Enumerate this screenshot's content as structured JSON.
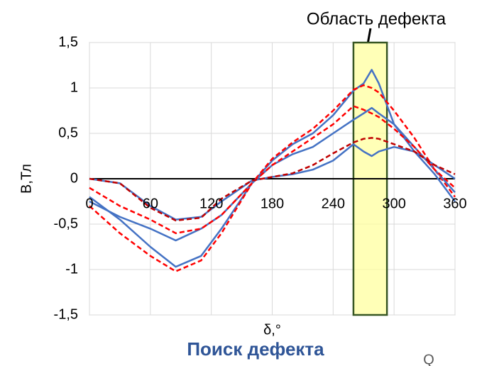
{
  "chart_data": {
    "type": "line",
    "title": "Поиск дефекта",
    "annotation": "Область дефекта",
    "corner_text": "Q",
    "xlabel": "δ,°",
    "ylabel": "В,Тл",
    "x": [
      0,
      30,
      60,
      85,
      110,
      130,
      160,
      180,
      200,
      220,
      240,
      260,
      270,
      278,
      285,
      300,
      320,
      340,
      360
    ],
    "series": [
      {
        "color": "#4472c4",
        "dash": false,
        "values": [
          -0.2,
          -0.45,
          -0.75,
          -0.97,
          -0.85,
          -0.55,
          -0.05,
          0.2,
          0.38,
          0.5,
          0.7,
          0.97,
          1.05,
          1.2,
          1.05,
          0.6,
          0.3,
          0.05,
          -0.25
        ]
      },
      {
        "color": "#ff0000",
        "dash": true,
        "values": [
          -0.3,
          -0.6,
          -0.85,
          -1.02,
          -0.9,
          -0.6,
          -0.05,
          0.22,
          0.4,
          0.55,
          0.75,
          0.98,
          1.03,
          1.0,
          0.95,
          0.75,
          0.45,
          0.1,
          -0.2
        ]
      },
      {
        "color": "#4472c4",
        "dash": false,
        "values": [
          -0.25,
          -0.42,
          -0.55,
          -0.68,
          -0.55,
          -0.4,
          -0.05,
          0.15,
          0.27,
          0.35,
          0.5,
          0.65,
          0.72,
          0.78,
          0.72,
          0.6,
          0.35,
          0.1,
          -0.15
        ]
      },
      {
        "color": "#ff0000",
        "dash": true,
        "values": [
          -0.1,
          -0.3,
          -0.45,
          -0.6,
          -0.55,
          -0.4,
          -0.05,
          0.15,
          0.3,
          0.45,
          0.6,
          0.8,
          0.76,
          0.72,
          0.68,
          0.55,
          0.35,
          0.1,
          -0.1
        ]
      },
      {
        "color": "#4472c4",
        "dash": false,
        "values": [
          0,
          -0.05,
          -0.3,
          -0.45,
          -0.42,
          -0.25,
          -0.02,
          0.02,
          0.05,
          0.1,
          0.2,
          0.38,
          0.3,
          0.25,
          0.3,
          0.35,
          0.3,
          0.15,
          0
        ]
      },
      {
        "color": "#c00000",
        "dash": true,
        "values": [
          0,
          -0.05,
          -0.32,
          -0.46,
          -0.43,
          -0.22,
          -0.02,
          0.02,
          0.06,
          0.15,
          0.28,
          0.4,
          0.44,
          0.45,
          0.44,
          0.38,
          0.3,
          0.15,
          0.05
        ]
      }
    ],
    "highlight": [
      260,
      293
    ],
    "highlight_color": "#ffff99",
    "xlim": [
      0,
      360
    ],
    "xticks": [
      0,
      60,
      120,
      180,
      240,
      300,
      360
    ],
    "ylim": [
      -1.5,
      1.5
    ],
    "yticks": [
      {
        "value": -1.5,
        "label": "-1,5"
      },
      {
        "value": -1,
        "label": "-1"
      },
      {
        "value": -0.5,
        "label": "-0,5"
      },
      0,
      {
        "value": 0.5,
        "label": "0,5"
      },
      1,
      {
        "value": 1.5,
        "label": "1,5"
      }
    ],
    "grid": true
  }
}
